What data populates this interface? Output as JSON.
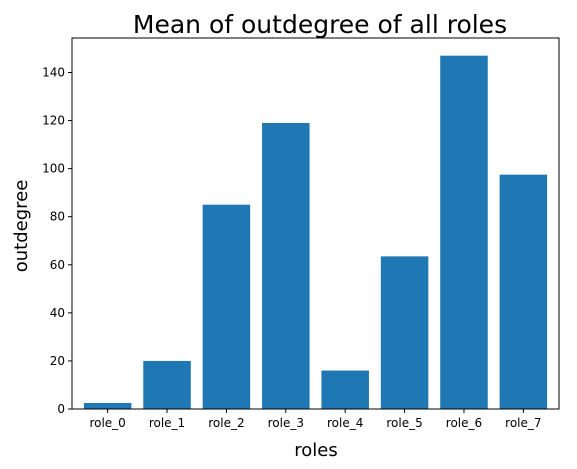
{
  "chart_data": {
    "type": "bar",
    "title": "Mean of outdegree of all roles",
    "xlabel": "roles",
    "ylabel": "outdegree",
    "categories": [
      "role_0",
      "role_1",
      "role_2",
      "role_3",
      "role_4",
      "role_5",
      "role_6",
      "role_7"
    ],
    "values": [
      2.5,
      20,
      85,
      119,
      16,
      63.5,
      147,
      97.5
    ],
    "ylim": [
      0,
      154.35
    ],
    "yticks": [
      0,
      20,
      40,
      60,
      80,
      100,
      120,
      140
    ],
    "bar_color": "#1f77b4",
    "grid": false,
    "legend": false
  }
}
